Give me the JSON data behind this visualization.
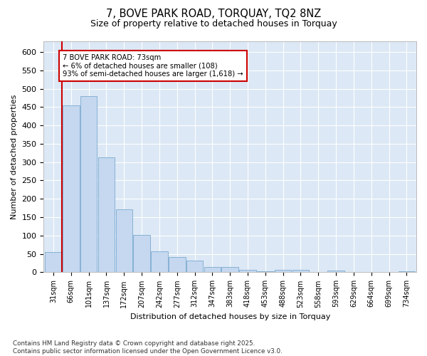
{
  "title": "7, BOVE PARK ROAD, TORQUAY, TQ2 8NZ",
  "subtitle": "Size of property relative to detached houses in Torquay",
  "xlabel": "Distribution of detached houses by size in Torquay",
  "ylabel": "Number of detached properties",
  "bar_color": "#c5d8f0",
  "bar_edge_color": "#7aaad0",
  "background_color": "#dce8f5",
  "grid_color": "#ffffff",
  "annotation_text": "7 BOVE PARK ROAD: 73sqm\n← 6% of detached houses are smaller (108)\n93% of semi-detached houses are larger (1,618) →",
  "vline_color": "#cc0000",
  "categories": [
    "31sqm",
    "66sqm",
    "101sqm",
    "137sqm",
    "172sqm",
    "207sqm",
    "242sqm",
    "277sqm",
    "312sqm",
    "347sqm",
    "383sqm",
    "418sqm",
    "453sqm",
    "488sqm",
    "523sqm",
    "558sqm",
    "593sqm",
    "629sqm",
    "664sqm",
    "699sqm",
    "734sqm"
  ],
  "values": [
    55,
    455,
    480,
    313,
    172,
    101,
    57,
    42,
    32,
    14,
    15,
    7,
    3,
    7,
    7,
    0,
    5,
    0,
    0,
    0,
    2
  ],
  "ylim": [
    0,
    630
  ],
  "yticks": [
    0,
    50,
    100,
    150,
    200,
    250,
    300,
    350,
    400,
    450,
    500,
    550,
    600
  ],
  "footer": "Contains HM Land Registry data © Crown copyright and database right 2025.\nContains public sector information licensed under the Open Government Licence v3.0.",
  "figsize": [
    6.0,
    5.0
  ],
  "dpi": 100
}
